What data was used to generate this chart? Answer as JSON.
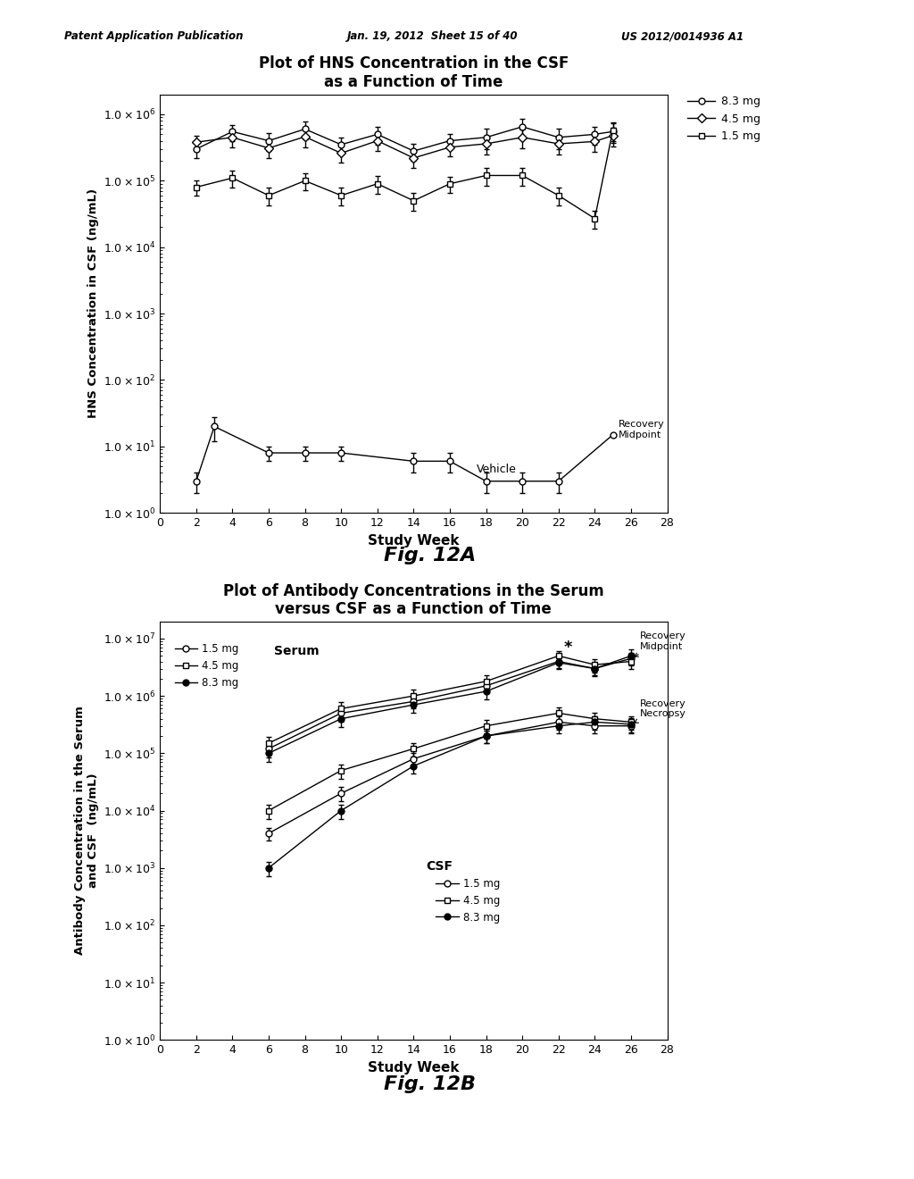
{
  "fig12a": {
    "title": "Plot of HNS Concentration in the CSF\nas a Function of Time",
    "xlabel": "Study Week",
    "ylabel": "HNS Concentration in CSF (ng/mL)",
    "xlim": [
      0,
      28
    ],
    "ylim_log": [
      1.0,
      2000000.0
    ],
    "xticks": [
      0,
      2,
      4,
      6,
      8,
      10,
      12,
      14,
      16,
      18,
      20,
      22,
      24,
      26,
      28
    ],
    "yticks_log": [
      1.0,
      10.0,
      100.0,
      1000.0,
      10000.0,
      100000.0,
      1000000.0
    ],
    "series_8mg": {
      "label": "8.3 mg",
      "marker": "o",
      "x": [
        2,
        4,
        6,
        8,
        10,
        12,
        14,
        16,
        18,
        20,
        22,
        24,
        25
      ],
      "y": [
        300000,
        550000,
        400000,
        600000,
        350000,
        500000,
        280000,
        400000,
        450000,
        650000,
        450000,
        500000,
        550000
      ],
      "yerr": [
        80000,
        150000,
        120000,
        180000,
        100000,
        150000,
        80000,
        100000,
        150000,
        200000,
        150000,
        150000,
        180000
      ]
    },
    "series_45mg": {
      "label": "4.5 mg",
      "marker": "D",
      "x": [
        2,
        4,
        6,
        8,
        10,
        12,
        14,
        16,
        18,
        20,
        22,
        24,
        25
      ],
      "y": [
        380000,
        450000,
        310000,
        460000,
        260000,
        400000,
        220000,
        320000,
        360000,
        450000,
        360000,
        390000,
        480000
      ],
      "yerr": [
        100000,
        130000,
        90000,
        140000,
        75000,
        120000,
        65000,
        90000,
        110000,
        140000,
        110000,
        120000,
        150000
      ]
    },
    "series_15mg": {
      "label": "1.5 mg",
      "marker": "s",
      "x": [
        2,
        4,
        6,
        8,
        10,
        12,
        14,
        16,
        18,
        20,
        22,
        24,
        25
      ],
      "y": [
        80000,
        110000,
        60000,
        100000,
        60000,
        90000,
        50000,
        90000,
        120000,
        120000,
        60000,
        27000,
        580000
      ],
      "yerr": [
        20000,
        30000,
        18000,
        28000,
        18000,
        27000,
        15000,
        25000,
        35000,
        35000,
        18000,
        8000,
        180000
      ]
    },
    "series_vehicle": {
      "label": "Vehicle",
      "marker": "o",
      "x": [
        2,
        3,
        6,
        8,
        10,
        14,
        16,
        18,
        20,
        22,
        25
      ],
      "y": [
        3,
        20,
        8,
        8,
        8,
        6,
        6,
        3,
        3,
        3,
        15
      ],
      "yerr": [
        1,
        8,
        2,
        2,
        2,
        2,
        2,
        1,
        1,
        1,
        5
      ]
    }
  },
  "fig12b": {
    "title": "Plot of Antibody Concentrations in the Serum\nversus CSF as a Function of Time",
    "xlabel": "Study Week",
    "ylabel": "Antibody Concentration in the Serum\nand CSF  (ng/mL)",
    "xlim": [
      0,
      28
    ],
    "ylim_log": [
      1.0,
      20000000.0
    ],
    "xticks": [
      0,
      2,
      4,
      6,
      8,
      10,
      12,
      14,
      16,
      18,
      20,
      22,
      24,
      26,
      28
    ],
    "yticks_log": [
      1.0,
      10.0,
      100.0,
      1000.0,
      10000.0,
      100000.0,
      1000000.0,
      10000000.0
    ],
    "serum_15mg": {
      "x": [
        6,
        10,
        14,
        18,
        22,
        24,
        26
      ],
      "y": [
        120000,
        500000,
        800000,
        1500000,
        4000000,
        3000000,
        4500000
      ],
      "yerr": [
        35000,
        140000,
        200000,
        400000,
        900000,
        700000,
        1100000
      ]
    },
    "serum_45mg": {
      "x": [
        6,
        10,
        14,
        18,
        22,
        24,
        26
      ],
      "y": [
        150000,
        600000,
        1000000,
        1800000,
        5000000,
        3500000,
        4000000
      ],
      "yerr": [
        45000,
        170000,
        280000,
        500000,
        1100000,
        900000,
        1100000
      ]
    },
    "serum_83mg": {
      "x": [
        6,
        10,
        14,
        18,
        22,
        24,
        26
      ],
      "y": [
        100000,
        400000,
        700000,
        1200000,
        3800000,
        3000000,
        5000000
      ],
      "yerr": [
        30000,
        110000,
        190000,
        340000,
        900000,
        750000,
        1400000
      ]
    },
    "csf_15mg": {
      "x": [
        6,
        10,
        14,
        18,
        22,
        24,
        26
      ],
      "y": [
        4000,
        20000,
        80000,
        200000,
        350000,
        300000,
        300000
      ],
      "yerr": [
        1000,
        5500,
        20000,
        50000,
        95000,
        75000,
        75000
      ]
    },
    "csf_45mg": {
      "x": [
        6,
        10,
        14,
        18,
        22,
        24,
        26
      ],
      "y": [
        10000,
        50000,
        120000,
        300000,
        500000,
        400000,
        350000
      ],
      "yerr": [
        2800,
        14000,
        32000,
        80000,
        140000,
        110000,
        95000
      ]
    },
    "csf_83mg": {
      "x": [
        6,
        10,
        14,
        18,
        22,
        24,
        26
      ],
      "y": [
        1000,
        10000,
        60000,
        200000,
        300000,
        350000,
        320000
      ],
      "yerr": [
        280,
        2800,
        15000,
        50000,
        78000,
        95000,
        85000
      ]
    }
  },
  "header": {
    "left": "Patent Application Publication",
    "center": "Jan. 19, 2012  Sheet 15 of 40",
    "right": "US 2012/0014936 A1"
  }
}
